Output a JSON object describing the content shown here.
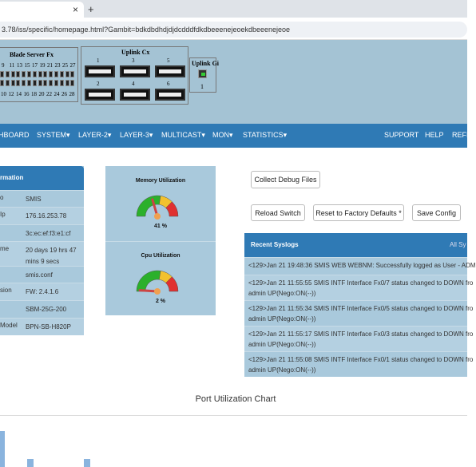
{
  "browser": {
    "tab_close": "×",
    "new_tab": "+",
    "url": "3.78/iss/specific/homepage.html?Gambit=bdkdbdhdjdjdcdddfdkdbeeenejeoekdbeeenejeoe"
  },
  "panel": {
    "blade": {
      "title": "Blade Server Fx",
      "top_ports": [
        "9",
        "11",
        "13",
        "15",
        "17",
        "19",
        "21",
        "23",
        "25",
        "27"
      ],
      "bottom_ports": [
        "10",
        "12",
        "14",
        "16",
        "18",
        "20",
        "22",
        "24",
        "26",
        "28"
      ]
    },
    "uplink_cx": {
      "title": "Uplink Cx",
      "ports": [
        "1",
        "3",
        "5",
        "2",
        "4",
        "6"
      ]
    },
    "uplink_gi": {
      "title": "Uplink Gi",
      "ports": [
        "1"
      ]
    }
  },
  "nav": {
    "left": [
      "HBOARD",
      "SYSTEM▾",
      "LAYER-2▾",
      "LAYER-3▾",
      "MULTICAST▾",
      "MON▾",
      "STATISTICS▾"
    ],
    "right": [
      "SUPPORT",
      "HELP",
      "REFI"
    ]
  },
  "info": {
    "title": "rmation",
    "rows": [
      {
        "label": "o",
        "value": "SMIS"
      },
      {
        "label": "Ip",
        "value": "176.16.253.78"
      },
      {
        "value": "3c:ec:ef:f3:e1:cf"
      },
      {
        "label": "me",
        "value": "20 days 19 hrs 47 mins 9 secs"
      },
      {
        "value": "smis.conf"
      },
      {
        "label": "sion",
        "value": "FW: 2.4.1.6"
      },
      {
        "value": "SBM-25G-200"
      },
      {
        "label": "Model",
        "value": "BPN-SB-H820P"
      }
    ]
  },
  "gauges": [
    {
      "title": "Memory Utilization",
      "percent": 41,
      "label": "41 %"
    },
    {
      "title": "Cpu Utilization",
      "percent": 2,
      "label": "2 %"
    }
  ],
  "buttons": {
    "collect": "Collect Debug Files",
    "reload": "Reload Switch",
    "reset": "Reset to Factory Defaults *",
    "save": "Save Config"
  },
  "syslog": {
    "title": "Recent Syslogs",
    "link": "All Sy",
    "entries": [
      [
        "<129>Jan 21 19:48:36 SMIS WEB WEBNM: Successfully logged as User - ADM"
      ],
      [
        "<129>Jan 21 11:55:55 SMIS INTF Interface Fx0/7 status changed to DOWN fro",
        "admin UP(Nego:ON(--))"
      ],
      [
        "<129>Jan 21 11:55:34 SMIS INTF Interface Fx0/5 status changed to DOWN fro",
        "admin UP(Nego:ON(--))"
      ],
      [
        "<129>Jan 21 11:55:17 SMIS INTF Interface Fx0/3 status changed to DOWN fro",
        "admin UP(Nego:ON(--))"
      ],
      [
        "<129>Jan 21 11:55:08 SMIS INTF Interface Fx0/1 status changed to DOWN fro",
        "admin UP(Nego:ON(--))"
      ]
    ]
  },
  "chart": {
    "title": "Port Utilization Chart"
  }
}
